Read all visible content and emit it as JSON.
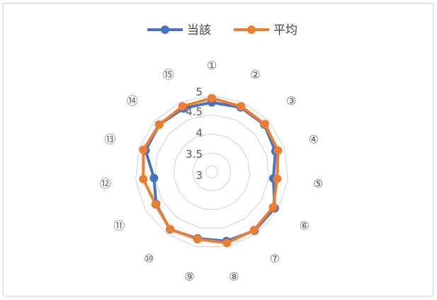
{
  "chart_data": {
    "type": "radar",
    "categories": [
      "①",
      "②",
      "③",
      "④",
      "⑤",
      "⑥",
      "⑦",
      "⑧",
      "⑨",
      "⑩",
      "⑪",
      "⑫",
      "⑬",
      "⑭",
      "⑮"
    ],
    "series": [
      {
        "name": "当該",
        "color": "#4472C4",
        "values": [
          4.82,
          4.85,
          4.85,
          4.75,
          4.62,
          4.9,
          4.9,
          4.85,
          4.78,
          4.86,
          4.68,
          4.52,
          4.82,
          4.85,
          4.82
        ]
      },
      {
        "name": "平均",
        "color": "#ED7D31",
        "values": [
          4.93,
          4.88,
          4.87,
          4.82,
          4.72,
          4.85,
          4.88,
          4.9,
          4.8,
          4.85,
          4.7,
          4.8,
          4.88,
          4.85,
          4.88
        ]
      }
    ],
    "ticks": [
      "3",
      "3.5",
      "4",
      "4.5",
      "5"
    ],
    "rlim": [
      3,
      5
    ],
    "grid": true,
    "legend_position": "top"
  }
}
